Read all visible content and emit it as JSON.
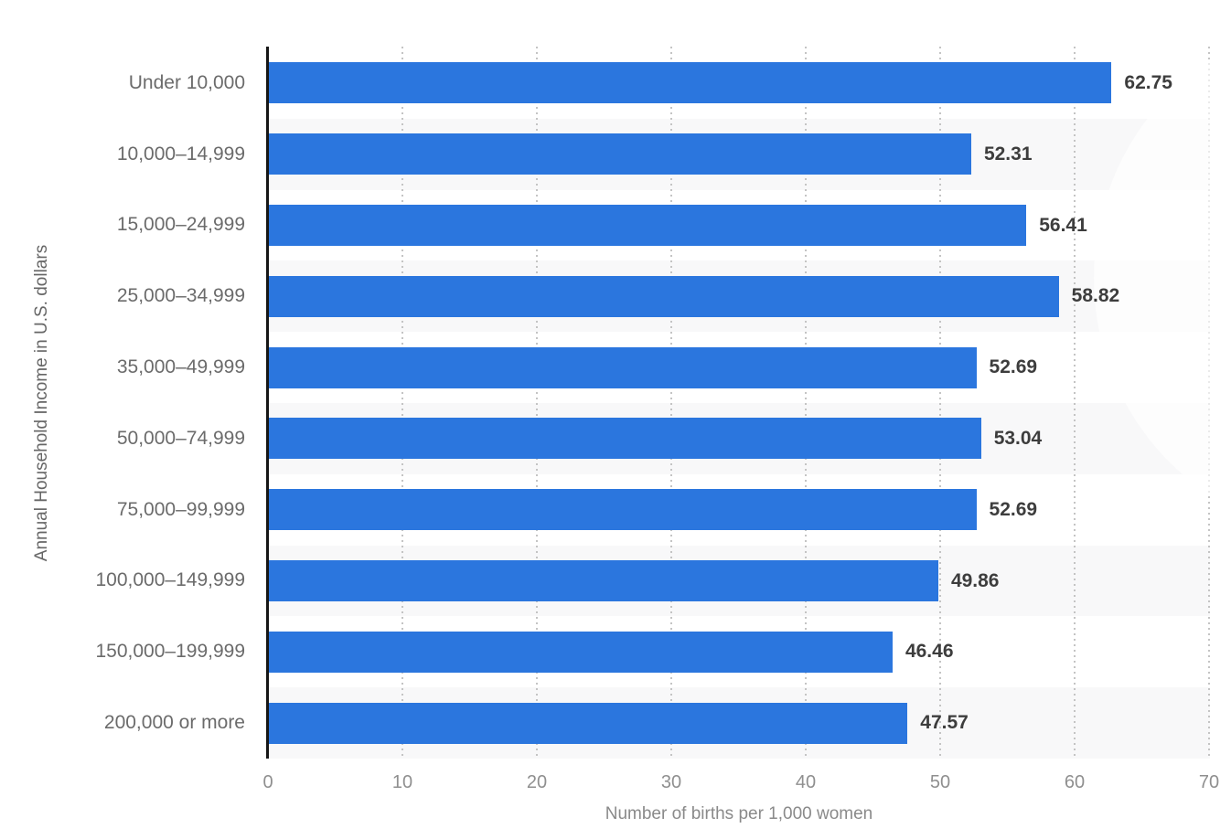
{
  "chart_data": {
    "type": "bar",
    "orientation": "horizontal",
    "title": "",
    "xlabel": "Number of births per 1,000 women",
    "ylabel": "Annual Household Income in U.S. dollars",
    "categories": [
      "Under 10,000",
      "10,000–14,999",
      "15,000–24,999",
      "25,000–34,999",
      "35,000–49,999",
      "50,000–74,999",
      "75,000–99,999",
      "100,000–149,999",
      "150,000–199,999",
      "200,000 or more"
    ],
    "values": [
      62.75,
      52.31,
      56.41,
      58.82,
      52.69,
      53.04,
      52.69,
      49.86,
      46.46,
      47.57
    ],
    "value_label_decimals": 2,
    "xlim": [
      0,
      70
    ],
    "x_ticks": [
      0,
      10,
      20,
      30,
      40,
      50,
      60,
      70
    ],
    "grid": "vertical-dotted",
    "row_striping": "alternate",
    "legend": "none"
  },
  "colors": {
    "bar": "#2b76de",
    "row_stripe": "#f8f8f9",
    "axis_line": "#161616",
    "gridline": "#c4c4c4",
    "category_label": "#6b6b6b",
    "value_label": "#3d3d3d",
    "tick_label": "#8f8f8f",
    "axis_title": "#8a8a8a",
    "background": "#ffffff"
  }
}
